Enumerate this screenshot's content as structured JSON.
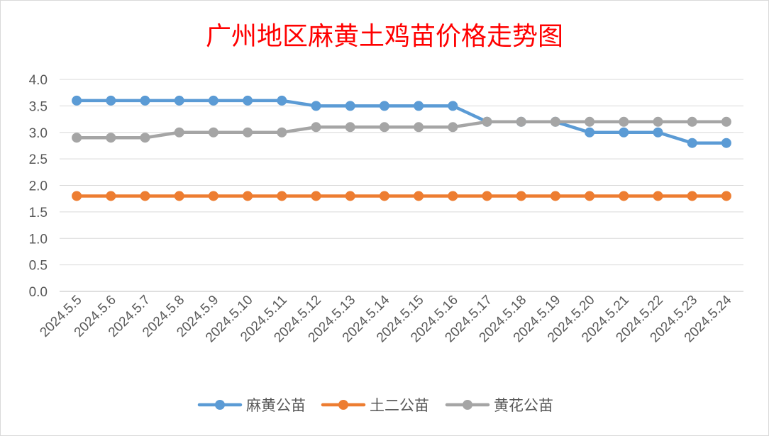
{
  "chart_data": {
    "type": "line",
    "title": "广州地区麻黄土鸡苗价格走势图",
    "categories": [
      "2024.5.5",
      "2024.5.6",
      "2024.5.7",
      "2024.5.8",
      "2024.5.9",
      "2024.5.10",
      "2024.5.11",
      "2024.5.12",
      "2024.5.13",
      "2024.5.14",
      "2024.5.15",
      "2024.5.16",
      "2024.5.17",
      "2024.5.18",
      "2024.5.19",
      "2024.5.20",
      "2024.5.21",
      "2024.5.22",
      "2024.5.23",
      "2024.5.24"
    ],
    "series": [
      {
        "name": "麻黄公苗",
        "color": "#5B9BD5",
        "values": [
          3.6,
          3.6,
          3.6,
          3.6,
          3.6,
          3.6,
          3.6,
          3.5,
          3.5,
          3.5,
          3.5,
          3.5,
          3.2,
          3.2,
          3.2,
          3.0,
          3.0,
          3.0,
          2.8,
          2.8
        ]
      },
      {
        "name": "土二公苗",
        "color": "#ED7D31",
        "values": [
          1.8,
          1.8,
          1.8,
          1.8,
          1.8,
          1.8,
          1.8,
          1.8,
          1.8,
          1.8,
          1.8,
          1.8,
          1.8,
          1.8,
          1.8,
          1.8,
          1.8,
          1.8,
          1.8,
          1.8
        ]
      },
      {
        "name": "黄花公苗",
        "color": "#A5A5A5",
        "values": [
          2.9,
          2.9,
          2.9,
          3.0,
          3.0,
          3.0,
          3.0,
          3.1,
          3.1,
          3.1,
          3.1,
          3.1,
          3.2,
          3.2,
          3.2,
          3.2,
          3.2,
          3.2,
          3.2,
          3.2
        ]
      }
    ],
    "ylim": [
      0,
      4.0
    ],
    "yticks": [
      "0.0",
      "0.5",
      "1.0",
      "1.5",
      "2.0",
      "2.5",
      "3.0",
      "3.5",
      "4.0"
    ],
    "grid": true,
    "legend": "bottom",
    "title_color": "#FF0000"
  }
}
